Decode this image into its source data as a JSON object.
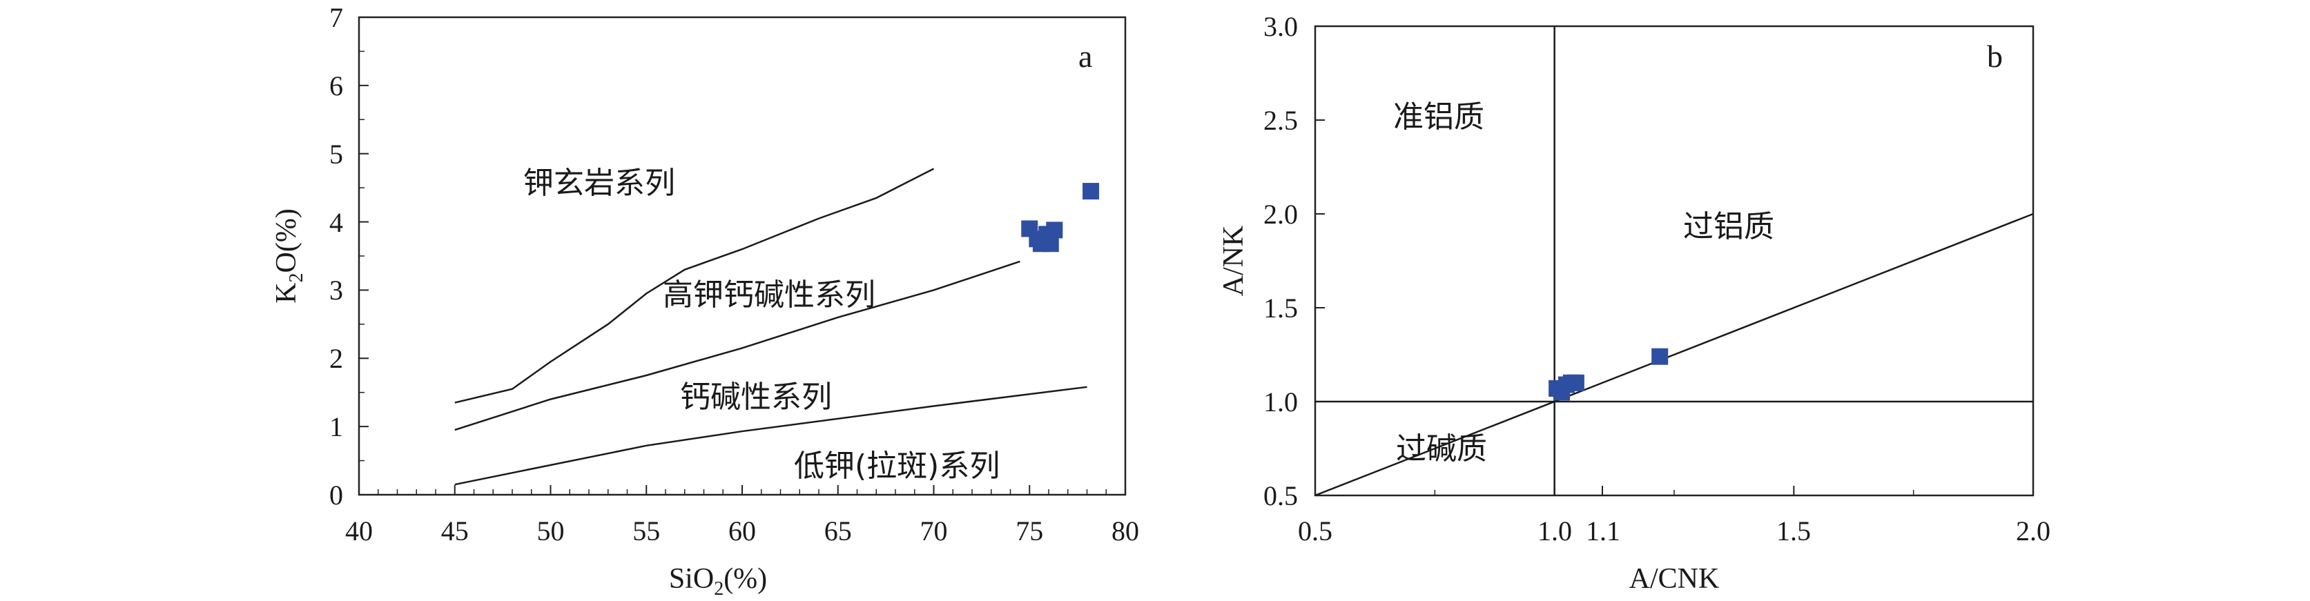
{
  "chart_data": [
    {
      "type": "scatter",
      "panel_label": "a",
      "xlabel_main": "SiO",
      "xlabel_sub": "2",
      "xlabel_rest": "(%)",
      "ylabel_pre": "K",
      "ylabel_sub": "2",
      "ylabel_rest": "O(%)",
      "xlim": [
        40,
        80
      ],
      "ylim": [
        0,
        7
      ],
      "xticks": [
        40,
        45,
        50,
        55,
        60,
        65,
        70,
        75,
        80
      ],
      "yticks": [
        0,
        1,
        2,
        3,
        4,
        5,
        6,
        7
      ],
      "boundary_lines": [
        [
          [
            45,
            1.35
          ],
          [
            48,
            1.55
          ],
          [
            50,
            1.95
          ],
          [
            53,
            2.5
          ],
          [
            55,
            2.95
          ],
          [
            57,
            3.3
          ],
          [
            60,
            3.6
          ],
          [
            64,
            4.05
          ],
          [
            67,
            4.35
          ],
          [
            70,
            4.78
          ]
        ],
        [
          [
            45,
            0.95
          ],
          [
            50,
            1.4
          ],
          [
            55,
            1.75
          ],
          [
            60,
            2.15
          ],
          [
            65,
            2.6
          ],
          [
            70,
            3.0
          ],
          [
            74.5,
            3.42
          ]
        ],
        [
          [
            45,
            0.15
          ],
          [
            55,
            0.72
          ],
          [
            60,
            0.93
          ],
          [
            70,
            1.3
          ],
          [
            78,
            1.58
          ]
        ]
      ],
      "region_labels": [
        "钾玄岩系列",
        "高钾钙碱性系列",
        "钙碱性系列",
        "低钾(拉斑)系列"
      ],
      "points": [
        {
          "x": 75.0,
          "y": 3.9
        },
        {
          "x": 75.4,
          "y": 3.75
        },
        {
          "x": 75.6,
          "y": 3.68
        },
        {
          "x": 75.9,
          "y": 3.82
        },
        {
          "x": 76.1,
          "y": 3.68
        },
        {
          "x": 76.3,
          "y": 3.88
        },
        {
          "x": 78.2,
          "y": 4.45
        }
      ],
      "marker_color": "#2e4ea1"
    },
    {
      "type": "scatter",
      "panel_label": "b",
      "xlabel": "A/CNK",
      "ylabel": "A/NK",
      "xlim": [
        0.5,
        2.0
      ],
      "ylim": [
        0.5,
        3.0
      ],
      "xticks": [
        {
          "value": 0.5,
          "label": "0.5"
        },
        {
          "value": 1.0,
          "label": "1.0"
        },
        {
          "value": 1.1,
          "label": "1.1"
        },
        {
          "value": 1.5,
          "label": "1.5"
        },
        {
          "value": 2.0,
          "label": "2.0"
        }
      ],
      "yticks": [
        "0.5",
        "1.0",
        "1.5",
        "2.0",
        "2.5",
        "3.0"
      ],
      "boundary_lines": [
        [
          [
            1.0,
            0.5
          ],
          [
            1.0,
            3.0
          ]
        ],
        [
          [
            0.5,
            1.0
          ],
          [
            2.0,
            1.0
          ]
        ],
        [
          [
            0.5,
            0.5
          ],
          [
            2.0,
            2.0
          ]
        ]
      ],
      "region_labels": [
        "准铝质",
        "过铝质",
        "过碱质"
      ],
      "points": [
        {
          "x": 1.005,
          "y": 1.07
        },
        {
          "x": 1.015,
          "y": 1.05
        },
        {
          "x": 1.025,
          "y": 1.09
        },
        {
          "x": 1.035,
          "y": 1.1
        },
        {
          "x": 1.045,
          "y": 1.1
        },
        {
          "x": 1.22,
          "y": 1.24
        }
      ],
      "marker_color": "#2e4ea1"
    }
  ]
}
